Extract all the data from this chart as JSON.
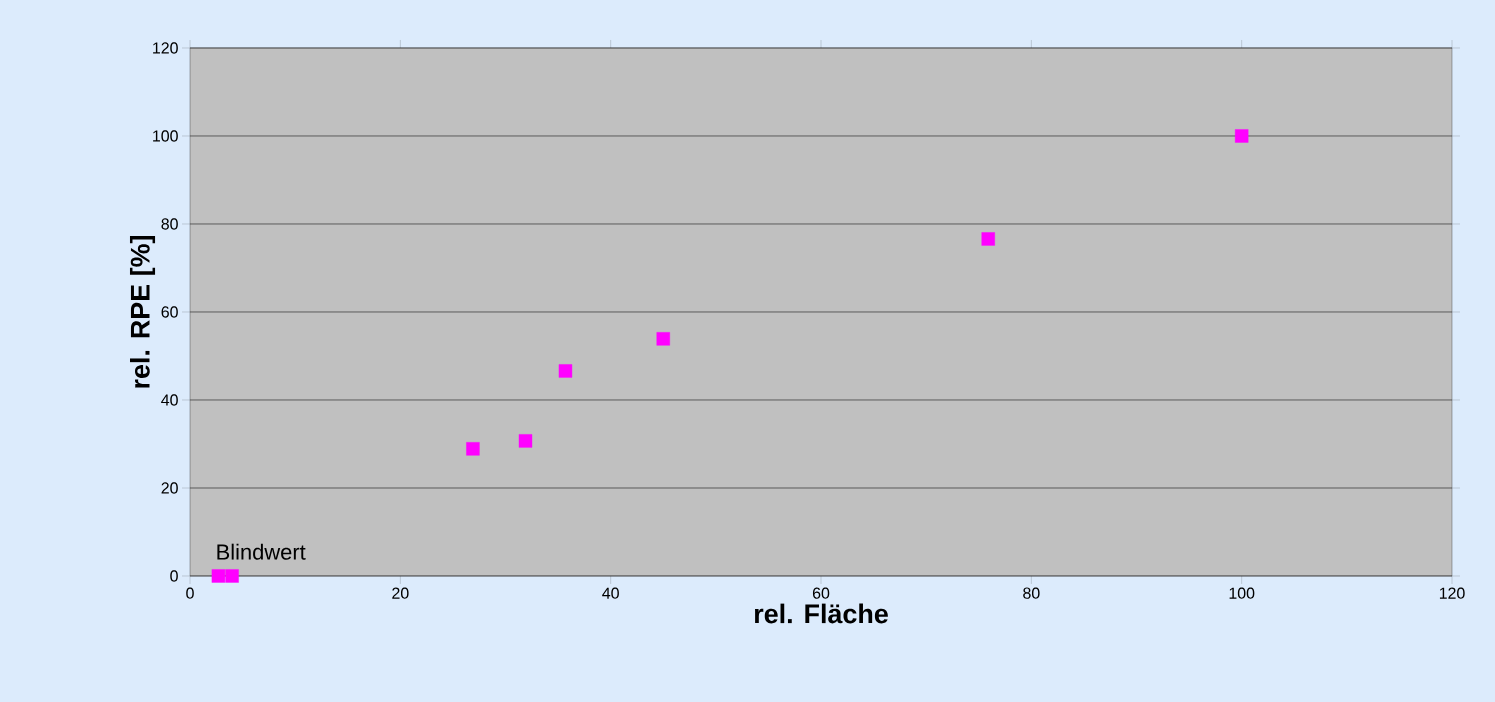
{
  "chart_data": {
    "type": "scatter",
    "xlabel": "rel. Fläche",
    "ylabel": "rel. RPE [%]",
    "x": [
      2.7,
      4,
      26.9,
      31.9,
      35.7,
      45,
      75.9,
      100
    ],
    "values": [
      0,
      0,
      28.9,
      30.7,
      46.6,
      53.9,
      76.6,
      100
    ],
    "color": "#ff00ff",
    "marker": "square",
    "xlim": [
      0,
      120
    ],
    "xticks": [
      0,
      20,
      40,
      60,
      80,
      100,
      120
    ],
    "ylim": [
      0,
      120
    ],
    "yticks": [
      0,
      20,
      40,
      60,
      80,
      100,
      120
    ],
    "grid": "y",
    "annotations": [
      {
        "text": "Blindwert",
        "x": 2.7,
        "y": 0
      }
    ]
  }
}
